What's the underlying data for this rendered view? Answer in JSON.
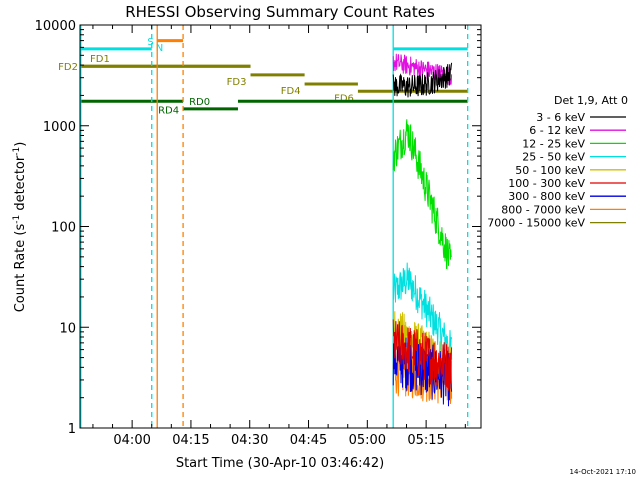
{
  "chart_data": {
    "type": "line",
    "title": "RHESSI Observing Summary Count Rates",
    "xlabel": "Start Time (30-Apr-10 03:46:42)",
    "ylabel_main": "Count Rate (s",
    "ylabel_exp1": "-1",
    "ylabel_mid": " detector",
    "ylabel_exp2": "-1",
    "ylabel_end": ")",
    "y_scale": "log",
    "ylim": [
      1,
      10000
    ],
    "xlim_minutes": [
      226.7,
      329.0
    ],
    "x_ticks": [
      {
        "label": "04:00",
        "t": 240
      },
      {
        "label": "04:15",
        "t": 255
      },
      {
        "label": "04:30",
        "t": 270
      },
      {
        "label": "04:45",
        "t": 285
      },
      {
        "label": "05:00",
        "t": 300
      },
      {
        "label": "05:15",
        "t": 315
      }
    ],
    "y_ticks": [
      {
        "label": "1",
        "v": 1
      },
      {
        "label": "10",
        "v": 10
      },
      {
        "label": "100",
        "v": 100
      },
      {
        "label": "1000",
        "v": 1000
      },
      {
        "label": "10000",
        "v": 10000
      }
    ],
    "legend_title": "Det 1,9, Att 0",
    "legend_placement": "right",
    "series": [
      {
        "name": "3 - 6 keV",
        "color": "#000000",
        "t_start": 306.6,
        "t_end": 321.5,
        "start": 2500,
        "end": 3300,
        "noise": 0.12
      },
      {
        "name": "6 - 12 keV",
        "color": "#e010e0",
        "t_start": 306.6,
        "t_end": 321.5,
        "start": 4300,
        "end": 3100,
        "noise": 0.1
      },
      {
        "name": "12 - 25 keV",
        "color": "#00e000",
        "t_start": 306.6,
        "t_end": 321.5,
        "start": 500,
        "end": 40,
        "peak": 900,
        "noise": 0.18
      },
      {
        "name": "25 - 50 keV",
        "color": "#00e0e0",
        "t_start": 306.6,
        "t_end": 321.5,
        "start": 22,
        "end": 6,
        "peak": 30,
        "noise": 0.18
      },
      {
        "name": "50 - 100 keV",
        "color": "#d0c000",
        "t_start": 306.6,
        "t_end": 321.5,
        "start": 10,
        "end": 4,
        "noise": 0.22
      },
      {
        "name": "100 - 300 keV",
        "color": "#e00000",
        "t_start": 306.6,
        "t_end": 321.5,
        "start": 7,
        "end": 4,
        "noise": 0.25
      },
      {
        "name": "300 - 800 keV",
        "color": "#0000e0",
        "t_start": 306.6,
        "t_end": 321.5,
        "start": 5,
        "end": 3,
        "noise": 0.28
      },
      {
        "name": "800 - 7000 keV",
        "color": "#ff8000",
        "t_start": 306.6,
        "t_end": 321.5,
        "start": 4,
        "end": 3,
        "noise": 0.28
      },
      {
        "name": "7000 - 15000 keV",
        "color": "#808000",
        "t_start": 306.6,
        "t_end": 321.5,
        "start": 0,
        "end": 0,
        "noise": 0
      }
    ],
    "flags": [
      {
        "label": "FD1",
        "color": "#808000",
        "t_start": 226.7,
        "t_end": 270.2,
        "y": 3900
      },
      {
        "label": "FD2",
        "color": "#808000",
        "t_start": 226.7,
        "t_end": 270.2,
        "y": 3900
      },
      {
        "label": "FD3",
        "color": "#808000",
        "t_start": 270.2,
        "t_end": 284.0,
        "y": 3200
      },
      {
        "label": "FD4",
        "color": "#808000",
        "t_start": 284.0,
        "t_end": 297.6,
        "y": 2600
      },
      {
        "label": "FD6",
        "color": "#808000",
        "t_start": 297.6,
        "t_end": 325.6,
        "y": 2200
      },
      {
        "label": "RD4",
        "color": "#006400",
        "t_start": 226.7,
        "t_end": 253.0,
        "y": 1750
      },
      {
        "label": "RD0",
        "color": "#006400",
        "t_start": 253.0,
        "t_end": 267.0,
        "y": 1470
      },
      {
        "label": "",
        "color": "#006400",
        "t_start": 267.0,
        "t_end": 325.6,
        "y": 1750
      },
      {
        "label": "S",
        "color": "#00e0e0",
        "t_start": 226.7,
        "t_end": 245.0,
        "y": 5800
      },
      {
        "label": "",
        "color": "#00e0e0",
        "t_start": 306.6,
        "t_end": 325.6,
        "y": 5800
      },
      {
        "label": "",
        "color": "#ff8000",
        "t_start": 246.4,
        "t_end": 253.0,
        "y": 7000
      }
    ],
    "flag_letter_n": "N",
    "flag_letter_n_color": "#00e0e0",
    "vlines": [
      {
        "t": 226.9,
        "color": "#00e0e0",
        "style": "solid"
      },
      {
        "t": 245.0,
        "color": "#00e0e0",
        "style": "dashed"
      },
      {
        "t": 246.4,
        "color": "#ff8000",
        "style": "solid"
      },
      {
        "t": 253.0,
        "color": "#ff8000",
        "style": "dashed"
      },
      {
        "t": 306.6,
        "color": "#00e0e0",
        "style": "solid"
      },
      {
        "t": 325.6,
        "color": "#00e0e0",
        "style": "dashed"
      }
    ],
    "timestamp": "14-Oct-2021 17:10"
  }
}
